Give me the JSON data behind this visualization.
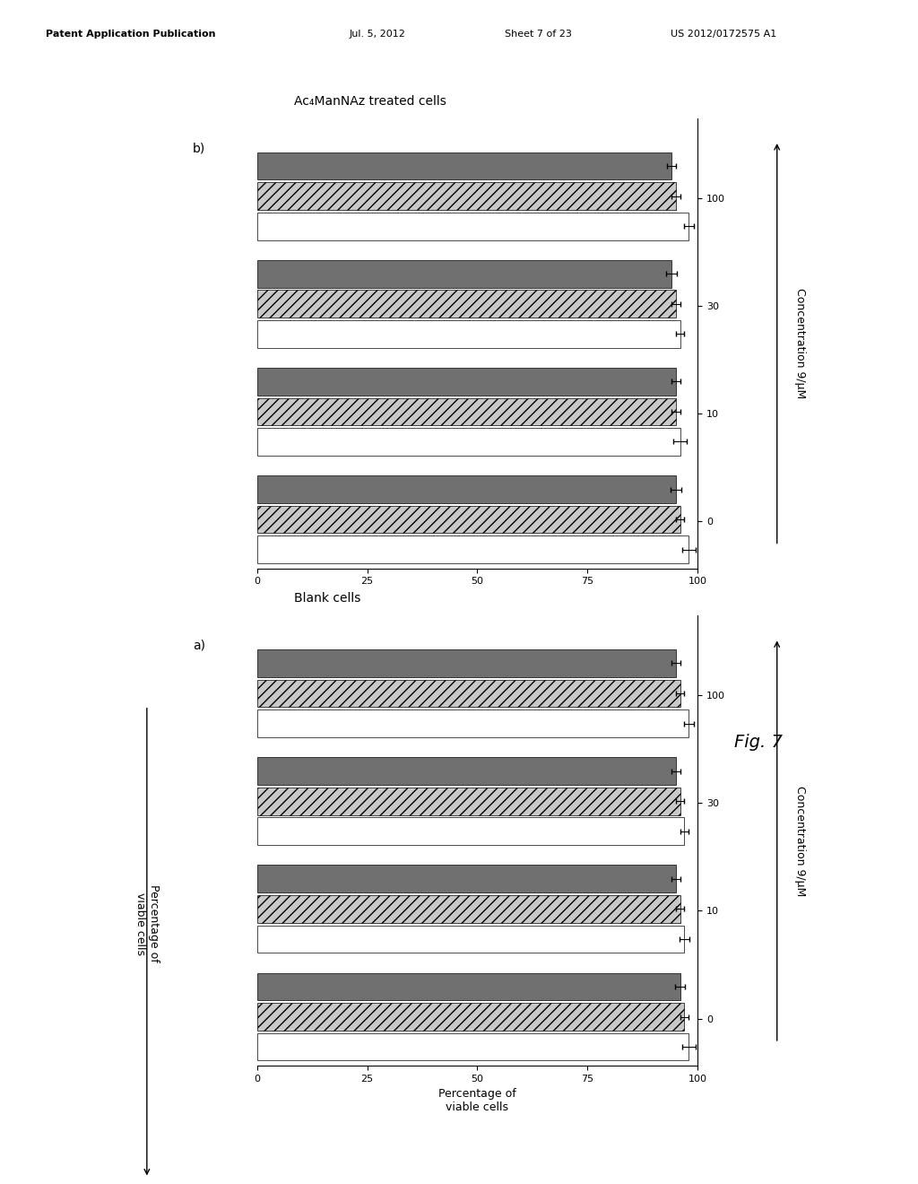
{
  "title_top": "Patent Application Publication    Jul. 5, 2012    Sheet 7 of 23    US 2012/0172575 A1",
  "fig_label": "Fig. 7",
  "panel_a_title": "Blank cells",
  "panel_b_title": "Ac₄ManNAz treated cells",
  "panel_a_label": "a)",
  "panel_b_label": "b)",
  "ylabel": "Percentage of\nviable cells",
  "xlabel_a": "Concentration 9/μM",
  "xlabel_b": "Concentration 9/μM",
  "concentrations": [
    0,
    10,
    30,
    100
  ],
  "xticks": [
    0,
    25,
    50,
    75,
    100
  ],
  "bar_height": 0.22,
  "panel_a_data": {
    "white": [
      98,
      97,
      97,
      98
    ],
    "hatched": [
      97,
      96,
      96,
      96
    ],
    "dark": [
      96,
      95,
      95,
      95
    ]
  },
  "panel_b_data": {
    "white": [
      98,
      96,
      96,
      98
    ],
    "hatched": [
      96,
      95,
      95,
      95
    ],
    "dark": [
      95,
      95,
      94,
      94
    ]
  },
  "panel_a_errors": {
    "white": [
      1.5,
      1.2,
      1.0,
      1.2
    ],
    "hatched": [
      1.0,
      1.0,
      1.0,
      1.0
    ],
    "dark": [
      1.2,
      1.0,
      1.0,
      1.0
    ]
  },
  "panel_b_errors": {
    "white": [
      1.5,
      1.5,
      1.0,
      1.2
    ],
    "hatched": [
      1.0,
      1.0,
      1.0,
      1.0
    ],
    "dark": [
      1.2,
      1.0,
      1.2,
      1.0
    ]
  },
  "colors": {
    "white": "#ffffff",
    "hatched": "#c8c8c8",
    "dark": "#707070"
  },
  "hatch_patterns": {
    "white": "",
    "hatched": "///",
    "dark": ""
  },
  "background": "#ffffff",
  "axis_color": "#000000",
  "font_size_title": 10,
  "font_size_label": 9,
  "font_size_tick": 8,
  "font_size_panel": 10
}
